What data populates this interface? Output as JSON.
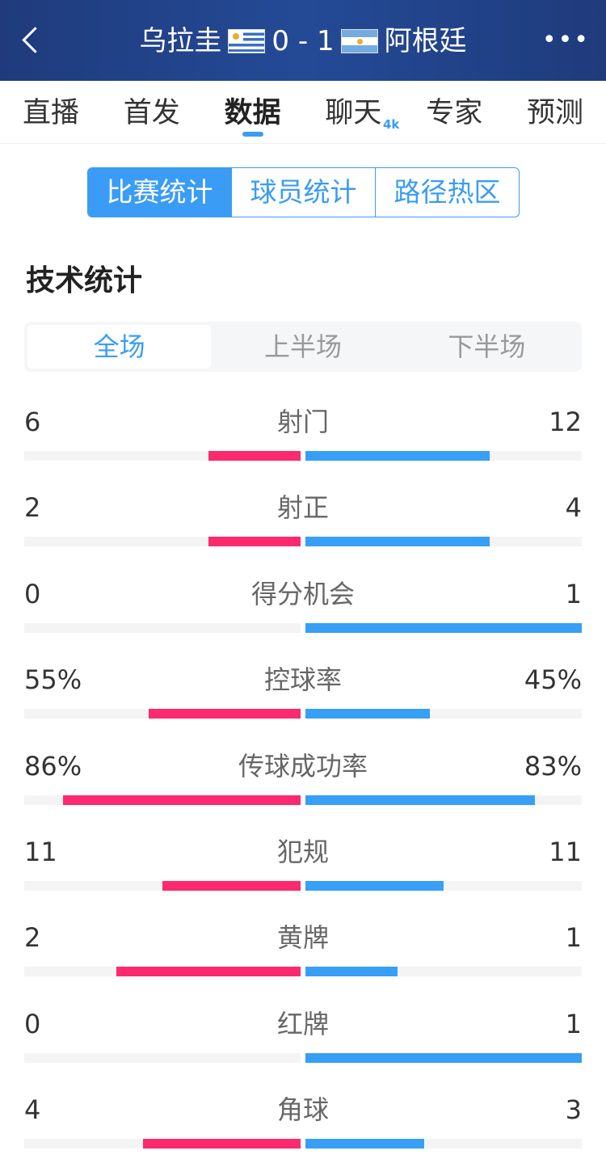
{
  "header": {
    "back_icon": "chevron-left-icon",
    "home": "乌拉圭",
    "score": "0 - 1",
    "away": "阿根廷",
    "more_icon": "more-dots-icon",
    "home_flag": "uruguay-flag",
    "away_flag": "argentina-flag"
  },
  "nav": {
    "items": [
      {
        "label": "直播"
      },
      {
        "label": "首发"
      },
      {
        "label": "数据",
        "active": true
      },
      {
        "label": "聊天",
        "badge": "4k"
      },
      {
        "label": "专家"
      },
      {
        "label": "预测"
      }
    ]
  },
  "segment": {
    "items": [
      "比赛统计",
      "球员统计",
      "路径热区"
    ],
    "active": 0
  },
  "section_title": "技术统计",
  "periods": {
    "items": [
      "全场",
      "上半场",
      "下半场"
    ],
    "active": 0
  },
  "colors": {
    "home": "#fb2a6f",
    "away": "#379ff6",
    "accent": "#3a9cf4",
    "header": "#1f3b7c"
  },
  "stats": [
    {
      "label": "射门",
      "home": "6",
      "away": "12",
      "home_frac": 0.333,
      "away_frac": 0.667
    },
    {
      "label": "射正",
      "home": "2",
      "away": "4",
      "home_frac": 0.333,
      "away_frac": 0.667
    },
    {
      "label": "得分机会",
      "home": "0",
      "away": "1",
      "home_frac": 0,
      "away_frac": 1
    },
    {
      "label": "控球率",
      "home": "55%",
      "away": "45%",
      "home_frac": 0.55,
      "away_frac": 0.45
    },
    {
      "label": "传球成功率",
      "home": "86%",
      "away": "83%",
      "home_frac": 0.86,
      "away_frac": 0.83
    },
    {
      "label": "犯规",
      "home": "11",
      "away": "11",
      "home_frac": 0.5,
      "away_frac": 0.5
    },
    {
      "label": "黄牌",
      "home": "2",
      "away": "1",
      "home_frac": 0.667,
      "away_frac": 0.333
    },
    {
      "label": "红牌",
      "home": "0",
      "away": "1",
      "home_frac": 0,
      "away_frac": 1
    },
    {
      "label": "角球",
      "home": "4",
      "away": "3",
      "home_frac": 0.571,
      "away_frac": 0.429
    }
  ]
}
